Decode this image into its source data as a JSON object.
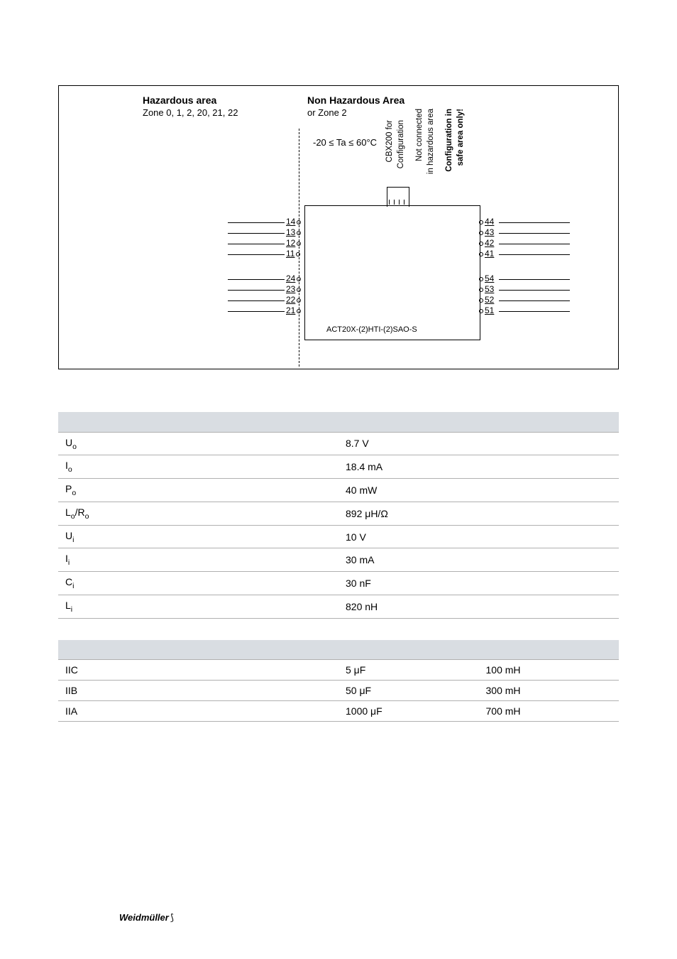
{
  "diagram": {
    "haz_title": "Hazardous area",
    "haz_sub": "Zone 0, 1, 2, 20, 21, 22",
    "nonhaz_title": "Non Hazardous Area",
    "nonhaz_sub": "or Zone 2",
    "temp_range": "-20 ≤ Ta ≤ 60°C",
    "vlabel1a": "CBX200 for",
    "vlabel1b": "Configuration",
    "vlabel2a": "Not connected",
    "vlabel2b": "in hazardous area",
    "vlabel3a": "Configuration in",
    "vlabel3b": "safe area only!",
    "device_label": "ACT20X-(2)HTI-(2)SAO-S",
    "left_terms_top": [
      "14",
      "13",
      "12",
      "11"
    ],
    "left_terms_bot": [
      "24",
      "23",
      "22",
      "21"
    ],
    "right_terms_top": [
      "44",
      "43",
      "42",
      "41"
    ],
    "right_terms_bot": [
      "54",
      "53",
      "52",
      "51"
    ],
    "colors": {
      "border": "#000000",
      "header_bg": "#d9dde2",
      "row_border": "#b0b0b0"
    }
  },
  "table1": {
    "rows": [
      {
        "p": "U",
        "s": "o",
        "v": "8.7 V"
      },
      {
        "p": "I",
        "s": "o",
        "v": "18.4 mA"
      },
      {
        "p": "P",
        "s": "o",
        "v": "40 mW"
      },
      {
        "p": "L",
        "s": "o",
        "p2": "/R",
        "s2": "o",
        "v": "892 μH/Ω"
      },
      {
        "p": "U",
        "s": "i",
        "v": "10 V"
      },
      {
        "p": "I",
        "s": "i",
        "v": "30 mA"
      },
      {
        "p": "C",
        "s": "i",
        "v": "30 nF"
      },
      {
        "p": "L",
        "s": "i",
        "v": "820 nH"
      }
    ]
  },
  "table2": {
    "rows": [
      {
        "g": "IIC",
        "c": "5 μF",
        "l": "100 mH"
      },
      {
        "g": "IIB",
        "c": "50 μF",
        "l": "300 mH"
      },
      {
        "g": "IIA",
        "c": "1000 μF",
        "l": "700 mH"
      }
    ]
  },
  "footer": {
    "brand": "Weidmüller",
    "glyph": "⟆"
  }
}
